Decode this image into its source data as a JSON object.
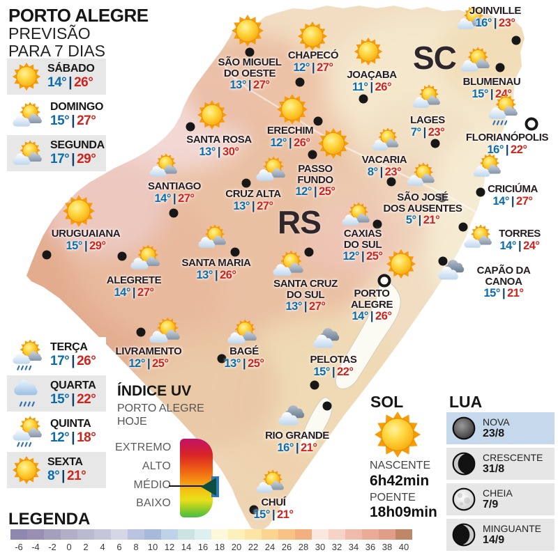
{
  "ui": {
    "sep": "|"
  },
  "header": {
    "title": "PORTO ALEGRE",
    "line1": "PREVISÃO",
    "line2": "PARA 7 DIAS"
  },
  "forecast_days": [
    {
      "day": "SÁBADO",
      "min": "14°",
      "max": "26°",
      "icon": "sun"
    },
    {
      "day": "DOMINGO",
      "min": "15°",
      "max": "27°",
      "icon": "sun-cloud"
    },
    {
      "day": "SEGUNDA",
      "min": "17°",
      "max": "29°",
      "icon": "sun-cloud"
    },
    {
      "day": "TERÇA",
      "min": "17°",
      "max": "26°",
      "icon": "sun-cloud-rain"
    },
    {
      "day": "QUARTA",
      "min": "15°",
      "max": "22°",
      "icon": "cloud-rain"
    },
    {
      "day": "QUINTA",
      "min": "12°",
      "max": "18°",
      "icon": "sun-cloud-rain"
    },
    {
      "day": "SEXTA",
      "min": "8°",
      "max": "21°",
      "icon": "sun"
    }
  ],
  "map": {
    "rs_label": "RS",
    "sc_label": "SC",
    "cities": [
      {
        "name": "JOINVILLE",
        "min": "16°",
        "max": "23°",
        "icon": "sun-cloud",
        "capital": false
      },
      {
        "name": "SÃO MIGUEL\nDO OESTE",
        "min": "13°",
        "max": "27°",
        "icon": "sun",
        "capital": false
      },
      {
        "name": "CHAPECÓ",
        "min": "12°",
        "max": "27°",
        "icon": "sun",
        "capital": false
      },
      {
        "name": "JOAÇABA",
        "min": "11°",
        "max": "26°",
        "icon": "sun",
        "capital": false
      },
      {
        "name": "BLUMENAU",
        "min": "15°",
        "max": "24°",
        "icon": "sun-cloud",
        "capital": false
      },
      {
        "name": "LAGES",
        "min": "7°",
        "max": "23°",
        "icon": "sun-cloud",
        "capital": false
      },
      {
        "name": "FLORIANÓPOLIS",
        "min": "16°",
        "max": "22°",
        "icon": "sun-cloud-rain",
        "capital": true
      },
      {
        "name": "ERECHIM",
        "min": "12°",
        "max": "26°",
        "icon": "sun",
        "capital": false
      },
      {
        "name": "SANTA ROSA",
        "min": "13°",
        "max": "30°",
        "icon": "sun",
        "capital": false
      },
      {
        "name": "PASSO\nFUNDO",
        "min": "12°",
        "max": "25°",
        "icon": "sun",
        "capital": false
      },
      {
        "name": "VACARIA",
        "min": "8°",
        "max": "23°",
        "icon": "sun-cloud",
        "capital": false
      },
      {
        "name": "SANTIAGO",
        "min": "14°",
        "max": "27°",
        "icon": "sun-cloud",
        "capital": false
      },
      {
        "name": "CRUZ ALTA",
        "min": "13°",
        "max": "27°",
        "icon": "sun-cloud",
        "capital": false
      },
      {
        "name": "SÃO JOSÉ\nDOS AUSENTES",
        "min": "5°",
        "max": "21°",
        "icon": "sun-cloud",
        "capital": false
      },
      {
        "name": "CRICIÚMA",
        "min": "14°",
        "max": "27°",
        "icon": "sun-cloud",
        "capital": false
      },
      {
        "name": "URUGUAIANA",
        "min": "15°",
        "max": "29°",
        "icon": "sun",
        "capital": false
      },
      {
        "name": "CAXIAS\nDO SUL",
        "min": "12°",
        "max": "25°",
        "icon": "sun-cloud",
        "capital": false
      },
      {
        "name": "TORRES",
        "min": "14°",
        "max": "24°",
        "icon": "sun-cloud",
        "capital": false
      },
      {
        "name": "SANTA MARIA",
        "min": "13°",
        "max": "26°",
        "icon": "sun-cloud",
        "capital": false
      },
      {
        "name": "CAPÃO DA\nCANOA",
        "min": "15°",
        "max": "21°",
        "icon": "clouds",
        "capital": false
      },
      {
        "name": "ALEGRETE",
        "min": "14°",
        "max": "27°",
        "icon": "sun-cloud",
        "capital": false
      },
      {
        "name": "SANTA CRUZ\nDO SUL",
        "min": "13°",
        "max": "27°",
        "icon": "sun-cloud",
        "capital": false
      },
      {
        "name": "PORTO\nALEGRE",
        "min": "14°",
        "max": "26°",
        "icon": "sun",
        "capital": true
      },
      {
        "name": "LIVRAMENTO",
        "min": "12°",
        "max": "25°",
        "icon": "sun-cloud",
        "capital": false
      },
      {
        "name": "BAGÉ",
        "min": "13°",
        "max": "25°",
        "icon": "sun-cloud",
        "capital": false
      },
      {
        "name": "PELOTAS",
        "min": "15°",
        "max": "22°",
        "icon": "clouds",
        "capital": false
      },
      {
        "name": "RIO GRANDE",
        "min": "16°",
        "max": "21°",
        "icon": "clouds",
        "capital": false
      },
      {
        "name": "CHUÍ",
        "min": "15°",
        "max": "21°",
        "icon": "sun-cloud",
        "capital": false
      }
    ]
  },
  "uv": {
    "title": "ÍNDICE UV",
    "city": "PORTO ALEGRE",
    "when": "HOJE",
    "levels": [
      "EXTREMO",
      "ALTO",
      "MÉDIO",
      "BAIXO"
    ],
    "current": "MÉDIO"
  },
  "sun": {
    "title": "SOL",
    "rise_label": "NASCENTE",
    "rise": "6h42min",
    "set_label": "POENTE",
    "set": "18h09min"
  },
  "moon": {
    "title": "LUA",
    "phases": [
      {
        "name": "NOVA",
        "date": "23/8"
      },
      {
        "name": "CRESCENTE",
        "date": "31/8"
      },
      {
        "name": "CHEIA",
        "date": "7/9"
      },
      {
        "name": "MINGUANTE",
        "date": "14/9"
      }
    ]
  },
  "legend": {
    "title": "LEGENDA",
    "ticks": [
      "-6",
      "-4",
      "-2",
      "0",
      "2",
      "4",
      "6",
      "8",
      "10",
      "12",
      "14",
      "16",
      "18",
      "20",
      "22",
      "24",
      "26",
      "28",
      "30",
      "32",
      "34",
      "36",
      "38",
      "40"
    ],
    "colors": [
      "#8e87ae",
      "#9790b4",
      "#a49fbb",
      "#b2aec7",
      "#bcbad0",
      "#c6c5d9",
      "#d6d6e7",
      "#bac4e0",
      "#a9b9da",
      "#c0d2ea",
      "#cbe3e3",
      "#dcf0f2",
      "#fcf8d9",
      "#fdf0bb",
      "#fce5a4",
      "#fbd492",
      "#f8c286",
      "#f2b07f",
      "#fae8df",
      "#f6d2c7",
      "#efbcab",
      "#eaab97",
      "#e09d87",
      "#c08767"
    ]
  },
  "colors": {
    "min_temp": "#0b6cad",
    "max_temp": "#d0231b",
    "moon_highlight": "#c6d9ec"
  }
}
